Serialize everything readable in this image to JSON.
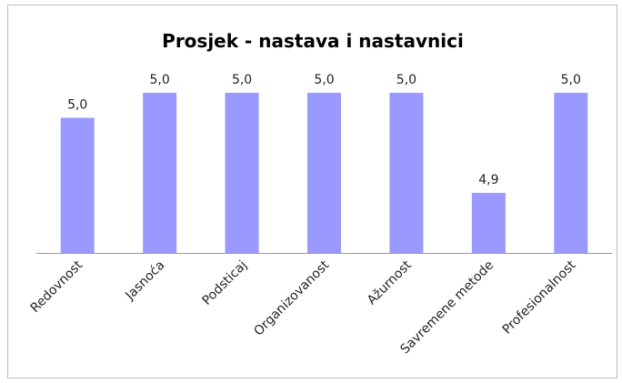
{
  "chart_data": {
    "type": "bar",
    "title": "Prosjek - nastava i nastavnici",
    "categories": [
      "Redovnost",
      "Jasnoća",
      "Podsticaj",
      "Organizovanost",
      "Ažurnost",
      "Savremene metode",
      "Profesionalnost"
    ],
    "values": [
      4.975,
      5.0,
      5.0,
      5.0,
      5.0,
      4.9,
      5.0
    ],
    "value_labels": [
      "5,0",
      "5,0",
      "5,0",
      "5,0",
      "5,0",
      "4,9",
      "5,0"
    ],
    "color": "#9999ff",
    "ylim": [
      4.84,
      5.0
    ]
  }
}
